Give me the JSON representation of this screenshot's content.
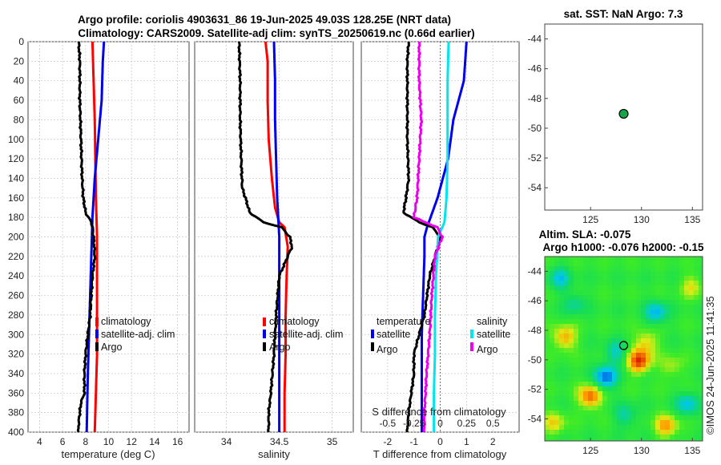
{
  "title_line1": "Argo profile: coriolis 4903631_86 19-Jun-2025 49.03S 128.25E (NRT data)",
  "title_line2": "Climatology: CARS2009. Satellite-adj clim: synTS_20250619.nc (0.66d earlier)",
  "watermark": "©IMOS 24-Jun-2025 11:41:35",
  "colors": {
    "climatology": "#ff0000",
    "satellite": "#0000ee",
    "argo": "#000000",
    "sat_salinity": "#00e5ee",
    "argo_salinity": "#ee00ee",
    "marker": "#1aa34a"
  },
  "chart_data": [
    {
      "name": "temperature",
      "type": "line",
      "xlabel": "temperature (deg C)",
      "ylabel": "",
      "xlim": [
        3,
        17
      ],
      "ylim": [
        400,
        0
      ],
      "xticks": [
        "4",
        "6",
        "8",
        "10",
        "12",
        "14",
        "16"
      ],
      "xtick_values": [
        4,
        6,
        8,
        10,
        12,
        14,
        16
      ],
      "yticks": [
        "0",
        "20",
        "40",
        "60",
        "80",
        "100",
        "120",
        "140",
        "160",
        "180",
        "200",
        "220",
        "240",
        "260",
        "280",
        "300",
        "320",
        "340",
        "360",
        "380",
        "400"
      ],
      "legend": [
        "climatology",
        "satellite-adj. clim",
        "Argo"
      ],
      "series": [
        {
          "name": "climatology",
          "color": "#ff0000",
          "depth": [
            0,
            40,
            80,
            120,
            160,
            200,
            240,
            280,
            320,
            360,
            400
          ],
          "values": [
            8.6,
            8.7,
            8.8,
            8.85,
            8.9,
            9.0,
            9.0,
            9.0,
            9.0,
            8.9,
            8.8
          ]
        },
        {
          "name": "satellite-adj. clim",
          "color": "#0000ee",
          "depth": [
            0,
            20,
            60,
            100,
            140,
            180,
            220,
            260,
            300,
            340,
            400
          ],
          "values": [
            9.6,
            9.5,
            9.4,
            9.1,
            8.8,
            8.6,
            8.5,
            8.4,
            8.3,
            8.2,
            8.1
          ]
        },
        {
          "name": "Argo",
          "color": "#000000",
          "depth": [
            0,
            20,
            60,
            100,
            140,
            160,
            175,
            185,
            190,
            200,
            220,
            240,
            260,
            280,
            300,
            320,
            340,
            360,
            370,
            380,
            390,
            400
          ],
          "values": [
            7.4,
            7.5,
            7.5,
            7.6,
            7.7,
            7.8,
            8.0,
            8.5,
            8.6,
            8.7,
            8.8,
            8.6,
            8.5,
            8.4,
            8.2,
            8.0,
            7.9,
            7.9,
            7.6,
            7.5,
            7.4,
            7.4
          ]
        }
      ]
    },
    {
      "name": "salinity",
      "type": "line",
      "xlabel": "salinity",
      "xlim": [
        33.7,
        35.2
      ],
      "ylim": [
        400,
        0
      ],
      "xticks": [
        "34",
        "34.5",
        "35"
      ],
      "xtick_values": [
        34,
        34.5,
        35
      ],
      "legend": [
        "climatology",
        "satellite-adj. clim",
        "Argo"
      ],
      "series": [
        {
          "name": "climatology",
          "color": "#ff0000",
          "depth": [
            0,
            10,
            20,
            60,
            100,
            140,
            170,
            185,
            190,
            210,
            240,
            280,
            320,
            360,
            400
          ],
          "values": [
            34.37,
            34.38,
            34.39,
            34.39,
            34.4,
            34.43,
            34.46,
            34.5,
            34.55,
            34.58,
            34.57,
            34.56,
            34.56,
            34.55,
            34.55
          ]
        },
        {
          "name": "satellite-adj. clim",
          "color": "#0000ee",
          "depth": [
            0,
            40,
            80,
            120,
            160,
            200,
            240,
            280,
            320,
            360,
            400
          ],
          "values": [
            34.45,
            34.46,
            34.46,
            34.47,
            34.48,
            34.5,
            34.5,
            34.5,
            34.5,
            34.5,
            34.5
          ]
        },
        {
          "name": "Argo",
          "color": "#000000",
          "depth": [
            0,
            40,
            80,
            120,
            150,
            160,
            175,
            185,
            190,
            200,
            210,
            220,
            240,
            280,
            320,
            360,
            380,
            400
          ],
          "values": [
            34.12,
            34.13,
            34.13,
            34.14,
            34.15,
            34.18,
            34.22,
            34.35,
            34.52,
            34.6,
            34.62,
            34.58,
            34.5,
            34.47,
            34.45,
            34.42,
            34.4,
            34.4
          ]
        }
      ]
    },
    {
      "name": "differences",
      "type": "line",
      "xlabel": "T difference from climatology",
      "top_xlabel": "S difference from climatology",
      "xlim": [
        -3,
        3
      ],
      "ylim": [
        400,
        0
      ],
      "xticks": [
        "-2",
        "-1",
        "0",
        "1",
        "2"
      ],
      "xtick_values": [
        -2,
        -1,
        0,
        1,
        2
      ],
      "top_xticks": [
        "-0.5",
        "-0.25",
        "0",
        "0.25",
        "0.5"
      ],
      "top_xtick_values": [
        -0.5,
        -0.25,
        0,
        0.25,
        0.5
      ],
      "legend_left_title": "temperature",
      "legend_right_title": "salinity",
      "legend": [
        "satellite",
        "Argo",
        "satellite",
        "Argo"
      ],
      "series": [
        {
          "name": "T satellite",
          "color": "#0000ee",
          "depth": [
            0,
            40,
            80,
            120,
            160,
            190,
            200,
            220,
            260,
            300,
            340,
            380,
            400
          ],
          "values": [
            1.0,
            0.9,
            0.5,
            0.3,
            -0.1,
            -0.5,
            -0.6,
            -0.6,
            -0.65,
            -0.7,
            -0.7,
            -0.7,
            -0.7
          ]
        },
        {
          "name": "T Argo",
          "color": "#000000",
          "depth": [
            0,
            20,
            60,
            100,
            140,
            160,
            175,
            185,
            190,
            200,
            220,
            240,
            260,
            280,
            300,
            320,
            340,
            360,
            380,
            400
          ],
          "values": [
            -1.2,
            -1.25,
            -1.25,
            -1.25,
            -1.2,
            -1.3,
            -1.4,
            -0.8,
            -0.3,
            0.0,
            -0.2,
            -0.4,
            -0.5,
            -0.6,
            -0.8,
            -1.0,
            -1.0,
            -1.1,
            -1.2,
            -1.25
          ]
        },
        {
          "name": "S satellite",
          "color": "#00e5ee",
          "scale": "salinity",
          "depth": [
            0,
            40,
            80,
            120,
            160,
            185,
            200,
            240,
            280,
            320,
            360,
            400
          ],
          "values": [
            0.08,
            0.07,
            0.07,
            0.07,
            0.06,
            0.04,
            -0.02,
            -0.04,
            -0.05,
            -0.05,
            -0.06,
            -0.06
          ]
        },
        {
          "name": "S Argo",
          "color": "#ee00ee",
          "scale": "salinity",
          "depth": [
            0,
            40,
            80,
            120,
            160,
            180,
            190,
            200,
            220,
            260,
            300,
            340,
            380,
            400
          ],
          "values": [
            -0.2,
            -0.2,
            -0.18,
            -0.2,
            -0.22,
            -0.25,
            -0.03,
            0.02,
            -0.05,
            -0.08,
            -0.1,
            -0.13,
            -0.15,
            -0.15
          ]
        }
      ]
    },
    {
      "name": "sat_sst_map",
      "type": "scatter",
      "title": "sat. SST: NaN Argo: 7.3",
      "xlim": [
        120.5,
        136
      ],
      "ylim": [
        -55.5,
        -43
      ],
      "xticks": [
        "125",
        "130",
        "135"
      ],
      "xtick_values": [
        125,
        130,
        135
      ],
      "yticks": [
        "-44",
        "-46",
        "-48",
        "-50",
        "-52",
        "-54"
      ],
      "ytick_values": [
        -44,
        -46,
        -48,
        -50,
        -52,
        -54
      ],
      "points": [
        {
          "lon": 128.25,
          "lat": -49.03
        }
      ]
    },
    {
      "name": "altim_sla_map",
      "type": "heatmap",
      "title_line1": "Altim. SLA: -0.075",
      "title_line2": "Argo h1000: -0.076 h2000: -0.15",
      "xlim": [
        120.5,
        136
      ],
      "ylim": [
        -55.5,
        -43
      ],
      "xticks": [
        "125",
        "130",
        "135"
      ],
      "xtick_values": [
        125,
        130,
        135
      ],
      "yticks": [
        "-44",
        "-46",
        "-48",
        "-50",
        "-52",
        "-54"
      ],
      "ytick_values": [
        -44,
        -46,
        -48,
        -50,
        -52,
        -54
      ],
      "points": [
        {
          "lon": 128.25,
          "lat": -49.03
        }
      ],
      "features": [
        {
          "lon": 129.8,
          "lat": -50.1,
          "v": 0.9
        },
        {
          "lon": 125.0,
          "lat": -52.5,
          "v": 0.8
        },
        {
          "lon": 122.5,
          "lat": -48.5,
          "v": 0.6
        },
        {
          "lon": 130.5,
          "lat": -48.8,
          "v": 0.45
        },
        {
          "lon": 126.5,
          "lat": -51.2,
          "v": -0.85
        },
        {
          "lon": 131.5,
          "lat": -46.8,
          "v": -0.6
        },
        {
          "lon": 127.5,
          "lat": -49.5,
          "v": -0.45
        },
        {
          "lon": 134.5,
          "lat": -53.0,
          "v": -0.55
        },
        {
          "lon": 122.0,
          "lat": -44.5,
          "v": -0.5
        },
        {
          "lon": 133.0,
          "lat": -50.5,
          "v": 0.3
        },
        {
          "lon": 123.5,
          "lat": -46.2,
          "v": -0.35
        },
        {
          "lon": 128.5,
          "lat": -53.8,
          "v": -0.4
        },
        {
          "lon": 135.0,
          "lat": -45.0,
          "v": 0.35
        },
        {
          "lon": 121.5,
          "lat": -54.3,
          "v": 0.4
        },
        {
          "lon": 132.5,
          "lat": -54.5,
          "v": 0.6
        }
      ]
    }
  ]
}
